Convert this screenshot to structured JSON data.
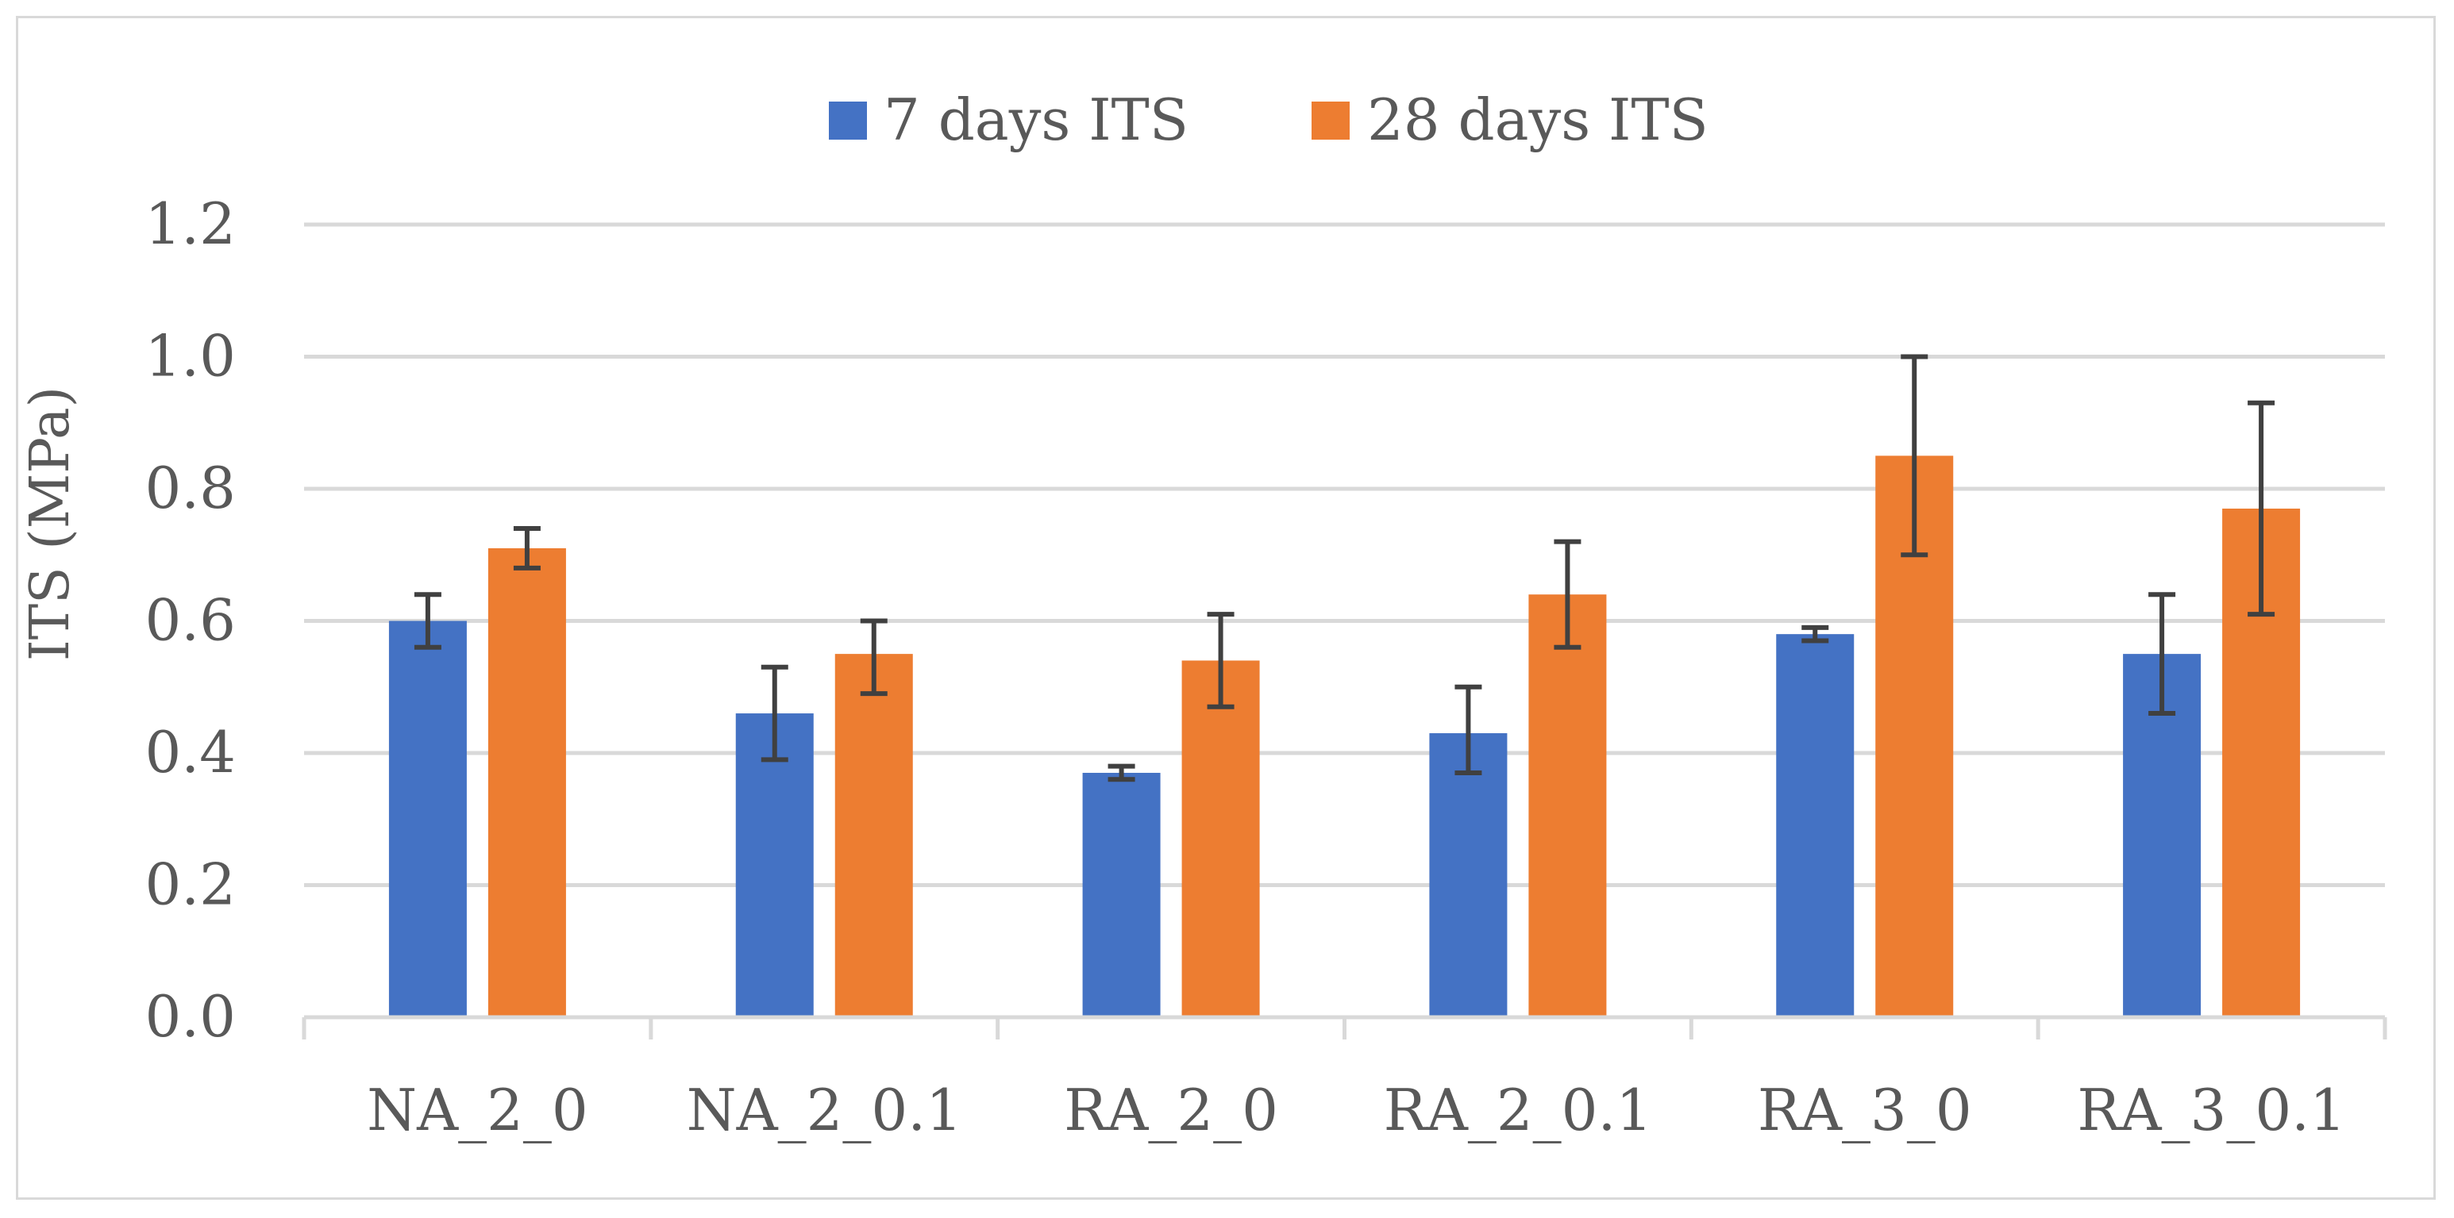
{
  "chart_data": {
    "type": "bar",
    "title": "",
    "xlabel": "",
    "ylabel": "ITS (MPa)",
    "ylim": [
      0,
      1.2
    ],
    "yticks": [
      "0.0",
      "0.2",
      "0.4",
      "0.6",
      "0.8",
      "1.0",
      "1.2"
    ],
    "grid": true,
    "legend_position": "top-center",
    "categories": [
      "NA_2_0",
      "NA_2_0.1",
      "RA_2_0",
      "RA_2_0.1",
      "RA_3_0",
      "RA_3_0.1"
    ],
    "series": [
      {
        "name": "7 days ITS",
        "color": "#4472C4",
        "values": [
          0.6,
          0.46,
          0.37,
          0.43,
          0.58,
          0.55
        ],
        "error_low": [
          0.56,
          0.39,
          0.36,
          0.37,
          0.57,
          0.46
        ],
        "error_high": [
          0.64,
          0.53,
          0.38,
          0.5,
          0.59,
          0.64
        ]
      },
      {
        "name": "28 days ITS",
        "color": "#ED7D31",
        "values": [
          0.71,
          0.55,
          0.54,
          0.64,
          0.85,
          0.77
        ],
        "error_low": [
          0.68,
          0.49,
          0.47,
          0.56,
          0.7,
          0.61
        ],
        "error_high": [
          0.74,
          0.6,
          0.61,
          0.72,
          1.0,
          0.93
        ]
      }
    ],
    "colors": {
      "gridline": "#d9d9d9",
      "axis": "#d9d9d9",
      "errorbar": "#404040",
      "text": "#595959"
    }
  }
}
